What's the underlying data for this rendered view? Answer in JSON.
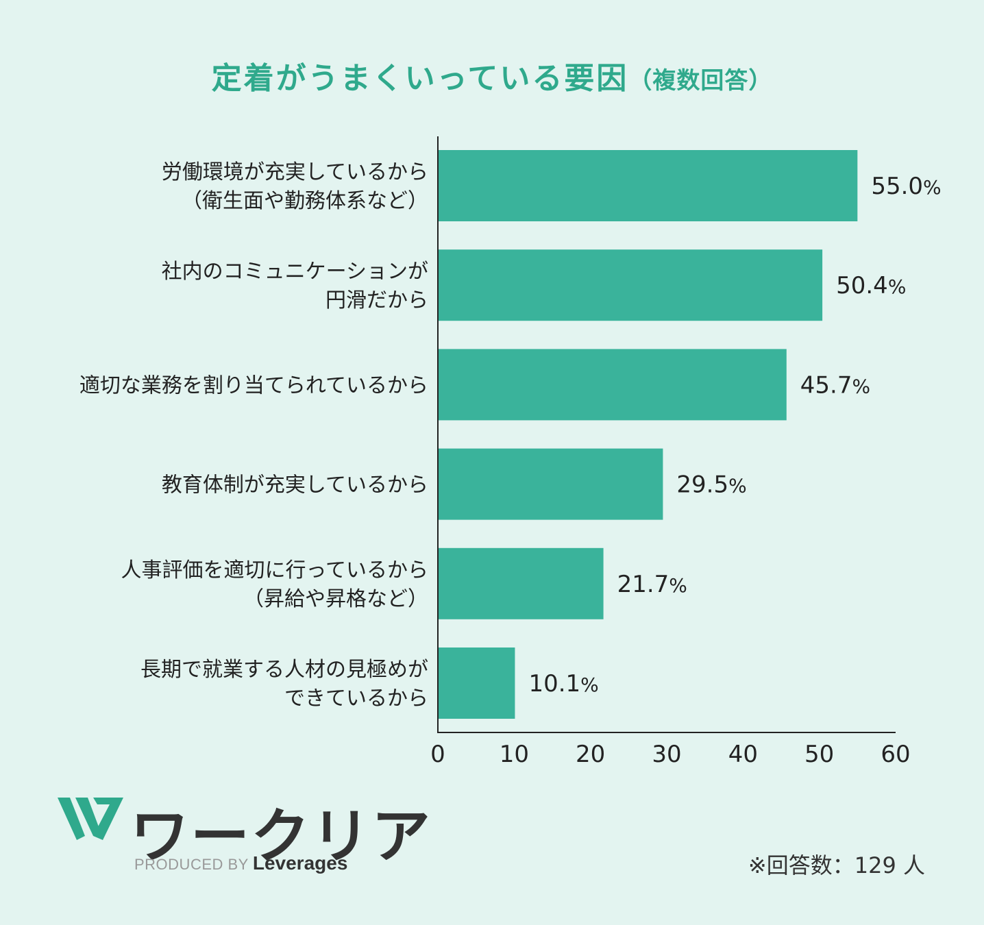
{
  "title": {
    "main": "定着がうまくいっている要因",
    "sub": "（複数回答）"
  },
  "chart_data": {
    "type": "bar",
    "orientation": "horizontal",
    "title": "定着がうまくいっている要因（複数回答）",
    "categories": [
      [
        "労働環境が充実しているから",
        "（衛生面や勤務体系など）"
      ],
      [
        "社内のコミュニケーションが",
        "円滑だから"
      ],
      [
        "適切な業務を割り当てられているから"
      ],
      [
        "教育体制が充実しているから"
      ],
      [
        "人事評価を適切に行っているから",
        "（昇給や昇格など）"
      ],
      [
        "長期で就業する人材の見極めが",
        "できているから"
      ]
    ],
    "values": [
      55.0,
      50.4,
      45.7,
      29.5,
      21.7,
      10.1
    ],
    "value_labels": [
      "55.0",
      "50.4",
      "45.7",
      "29.5",
      "21.7",
      "10.1"
    ],
    "value_suffix": "%",
    "xlim": [
      0,
      60
    ],
    "xticks": [
      "0",
      "10",
      "20",
      "30",
      "40",
      "50",
      "60"
    ],
    "grid": false,
    "bar_color": "#3ab39b"
  },
  "brand": {
    "name": "ワークリア",
    "produced_by": "PRODUCED BY",
    "company": "Leverages",
    "logo_color": "#2fa98c"
  },
  "footnote": "※回答数：129 人"
}
